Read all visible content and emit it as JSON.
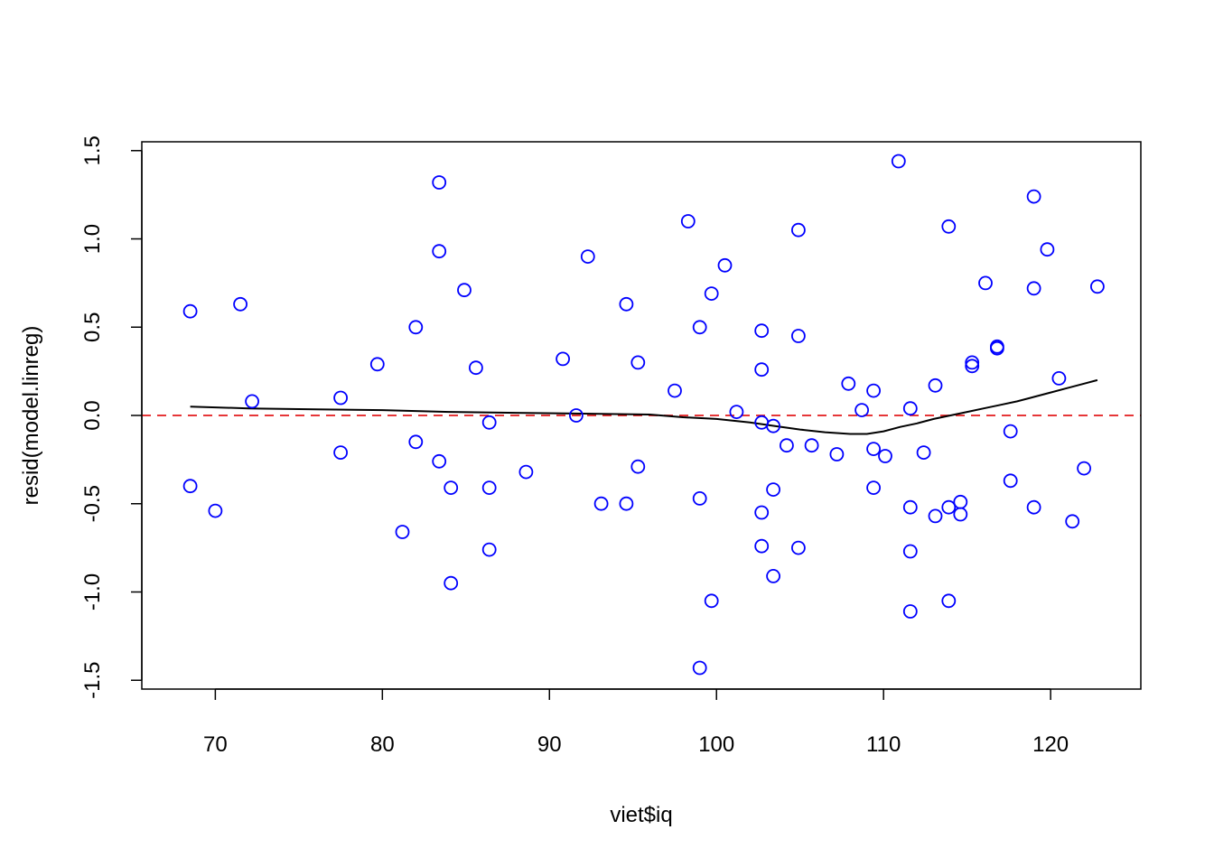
{
  "chart_data": {
    "type": "scatter",
    "xlabel": "viet$iq",
    "ylabel": "resid(model.linreg)",
    "xlim": [
      65.6,
      125.4
    ],
    "ylim": [
      -1.55,
      1.55
    ],
    "x_ticks": [
      70,
      80,
      90,
      100,
      110,
      120
    ],
    "x_tick_labels": [
      "70",
      "80",
      "90",
      "100",
      "110",
      "120"
    ],
    "y_ticks": [
      -1.5,
      -1.0,
      -0.5,
      0.0,
      0.5,
      1.0,
      1.5
    ],
    "y_tick_labels": [
      "-1.5",
      "-1.0",
      "-0.5",
      "0.0",
      "0.5",
      "1.0",
      "1.5"
    ],
    "colors": {
      "points": "#0000ff",
      "reference": "#e31a1c",
      "smooth": "#000000"
    },
    "reference_line": {
      "y": 0.0,
      "style": "dashed"
    },
    "points": [
      [
        68.5,
        0.59
      ],
      [
        68.5,
        -0.4
      ],
      [
        70.0,
        -0.54
      ],
      [
        71.5,
        0.63
      ],
      [
        72.2,
        0.08
      ],
      [
        77.5,
        0.1
      ],
      [
        77.5,
        -0.21
      ],
      [
        79.7,
        0.29
      ],
      [
        81.2,
        -0.66
      ],
      [
        82.0,
        0.5
      ],
      [
        82.0,
        -0.15
      ],
      [
        83.4,
        1.32
      ],
      [
        83.4,
        0.93
      ],
      [
        83.4,
        -0.26
      ],
      [
        84.1,
        -0.41
      ],
      [
        84.1,
        -0.95
      ],
      [
        84.9,
        0.71
      ],
      [
        85.6,
        0.27
      ],
      [
        86.4,
        -0.04
      ],
      [
        86.4,
        -0.41
      ],
      [
        86.4,
        -0.76
      ],
      [
        88.6,
        -0.32
      ],
      [
        90.8,
        0.32
      ],
      [
        91.6,
        0.0
      ],
      [
        92.3,
        0.9
      ],
      [
        93.1,
        -0.5
      ],
      [
        94.6,
        0.63
      ],
      [
        94.6,
        -0.5
      ],
      [
        95.3,
        0.3
      ],
      [
        95.3,
        -0.29
      ],
      [
        97.5,
        0.14
      ],
      [
        98.3,
        1.1
      ],
      [
        99.0,
        0.5
      ],
      [
        99.0,
        -0.47
      ],
      [
        99.0,
        -1.43
      ],
      [
        99.7,
        0.69
      ],
      [
        99.7,
        -1.05
      ],
      [
        100.5,
        0.85
      ],
      [
        101.2,
        0.02
      ],
      [
        102.7,
        0.48
      ],
      [
        102.7,
        0.26
      ],
      [
        102.7,
        -0.04
      ],
      [
        102.7,
        -0.55
      ],
      [
        102.7,
        -0.74
      ],
      [
        103.4,
        -0.06
      ],
      [
        103.4,
        -0.42
      ],
      [
        103.4,
        -0.91
      ],
      [
        104.2,
        -0.17
      ],
      [
        104.9,
        1.05
      ],
      [
        104.9,
        0.45
      ],
      [
        104.9,
        -0.75
      ],
      [
        105.7,
        -0.17
      ],
      [
        107.2,
        -0.22
      ],
      [
        107.9,
        0.18
      ],
      [
        108.7,
        0.03
      ],
      [
        109.4,
        0.14
      ],
      [
        109.4,
        -0.19
      ],
      [
        109.4,
        -0.41
      ],
      [
        110.1,
        -0.23
      ],
      [
        110.9,
        1.44
      ],
      [
        111.6,
        0.04
      ],
      [
        111.6,
        -0.52
      ],
      [
        111.6,
        -0.77
      ],
      [
        111.6,
        -1.11
      ],
      [
        112.4,
        -0.21
      ],
      [
        113.1,
        0.17
      ],
      [
        113.1,
        -0.57
      ],
      [
        113.9,
        1.07
      ],
      [
        113.9,
        -0.52
      ],
      [
        113.9,
        -1.05
      ],
      [
        114.6,
        -0.49
      ],
      [
        114.6,
        -0.56
      ],
      [
        115.3,
        0.3
      ],
      [
        115.3,
        0.28
      ],
      [
        116.1,
        0.75
      ],
      [
        116.8,
        0.39
      ],
      [
        116.8,
        0.38
      ],
      [
        117.6,
        -0.09
      ],
      [
        117.6,
        -0.37
      ],
      [
        119.0,
        1.24
      ],
      [
        119.0,
        0.72
      ],
      [
        119.0,
        -0.52
      ],
      [
        119.8,
        0.94
      ],
      [
        120.5,
        0.21
      ],
      [
        121.3,
        -0.6
      ],
      [
        122.0,
        -0.3
      ],
      [
        122.8,
        0.73
      ]
    ],
    "smooth_line": [
      [
        68.5,
        0.05
      ],
      [
        72.0,
        0.04
      ],
      [
        76.0,
        0.035
      ],
      [
        80.0,
        0.03
      ],
      [
        84.0,
        0.02
      ],
      [
        88.0,
        0.015
      ],
      [
        92.0,
        0.01
      ],
      [
        96.0,
        0.005
      ],
      [
        98.0,
        -0.01
      ],
      [
        100.0,
        -0.02
      ],
      [
        102.0,
        -0.04
      ],
      [
        103.5,
        -0.06
      ],
      [
        105.0,
        -0.08
      ],
      [
        106.5,
        -0.095
      ],
      [
        108.0,
        -0.105
      ],
      [
        109.0,
        -0.105
      ],
      [
        110.0,
        -0.09
      ],
      [
        111.0,
        -0.065
      ],
      [
        112.0,
        -0.045
      ],
      [
        113.0,
        -0.02
      ],
      [
        114.0,
        0.0
      ],
      [
        115.0,
        0.02
      ],
      [
        116.0,
        0.04
      ],
      [
        117.0,
        0.06
      ],
      [
        118.0,
        0.08
      ],
      [
        119.0,
        0.105
      ],
      [
        120.0,
        0.13
      ],
      [
        121.0,
        0.155
      ],
      [
        122.0,
        0.18
      ],
      [
        122.8,
        0.2
      ]
    ]
  }
}
